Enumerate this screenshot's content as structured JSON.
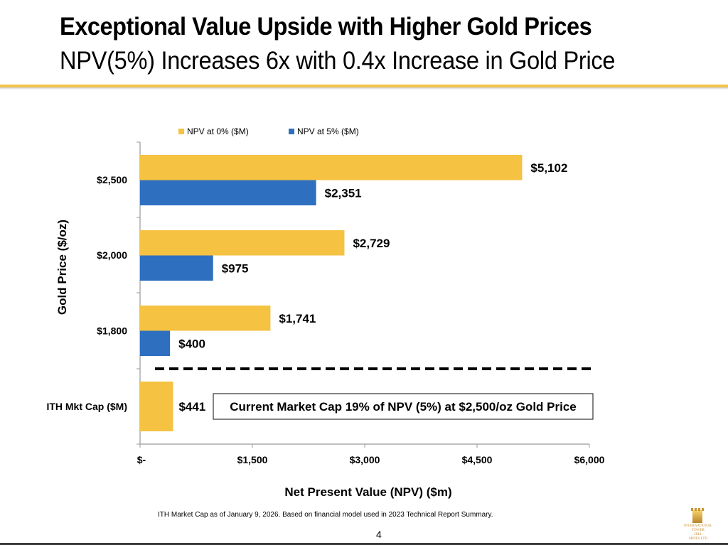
{
  "slide": {
    "title": "Exceptional Value Upside with Higher Gold Prices",
    "subtitle": "NPV(5%) Increases 6x with 0.4x Increase in Gold Price",
    "footnote": "ITH Market Cap as of  January 9, 2026. Based on financial model used in 2023 Technical Report Summary.",
    "page_number": "4",
    "logo": {
      "name": "tower-hill-logo",
      "lines": [
        "INTERNATIONAL",
        "TOWER",
        "· HILL ·",
        "MINES LTD"
      ]
    },
    "accent_color": "#f2c24a"
  },
  "chart_data": {
    "type": "bar",
    "orientation": "horizontal",
    "title": "",
    "xlabel": "Net Present Value (NPV) ($m)",
    "ylabel": "Gold Price ($/oz)",
    "xlim": [
      0,
      6000
    ],
    "x_ticks": [
      0,
      1500,
      3000,
      4500,
      6000
    ],
    "x_tick_labels": [
      "$-",
      "$1,500",
      "$3,000",
      "$4,500",
      "$6,000"
    ],
    "grid": false,
    "legend_position": "top",
    "categories": [
      "$2,500",
      "$2,000",
      "$1,800",
      "ITH Mkt Cap ($M)"
    ],
    "series": [
      {
        "name": "NPV at 0% ($M)",
        "color": "#f5c242",
        "values": [
          5102,
          2729,
          1741,
          441
        ],
        "labels": [
          "$5,102",
          "$2,729",
          "$1,741",
          "$441"
        ]
      },
      {
        "name": "NPV at 5% ($M)",
        "color": "#2e6fbf",
        "values": [
          2351,
          975,
          400,
          null
        ],
        "labels": [
          "$2,351",
          "$975",
          "$400",
          null
        ]
      }
    ],
    "annotations": [
      {
        "type": "dashed-separator",
        "between": [
          "$1,800",
          "ITH Mkt Cap ($M)"
        ]
      },
      {
        "type": "callout-box",
        "text": "Current Market Cap 19% of NPV (5%) at $2,500/oz Gold Price",
        "category": "ITH Mkt Cap ($M)"
      }
    ]
  }
}
